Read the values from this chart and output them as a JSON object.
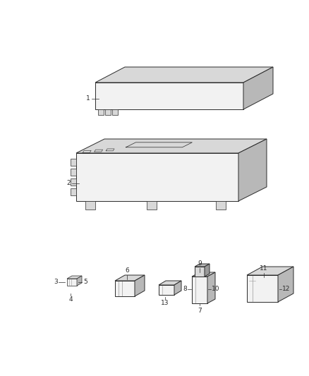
{
  "background_color": "#ffffff",
  "line_color": "#2a2a2a",
  "label_color": "#222222",
  "fig_width": 4.38,
  "fig_height": 5.33,
  "dpi": 100,
  "lw_main": 0.7,
  "lw_thin": 0.5,
  "label_fs": 6.5,
  "fc_light": "#f2f2f2",
  "fc_mid": "#d8d8d8",
  "fc_dark": "#b8b8b8",
  "fc_darker": "#999999"
}
